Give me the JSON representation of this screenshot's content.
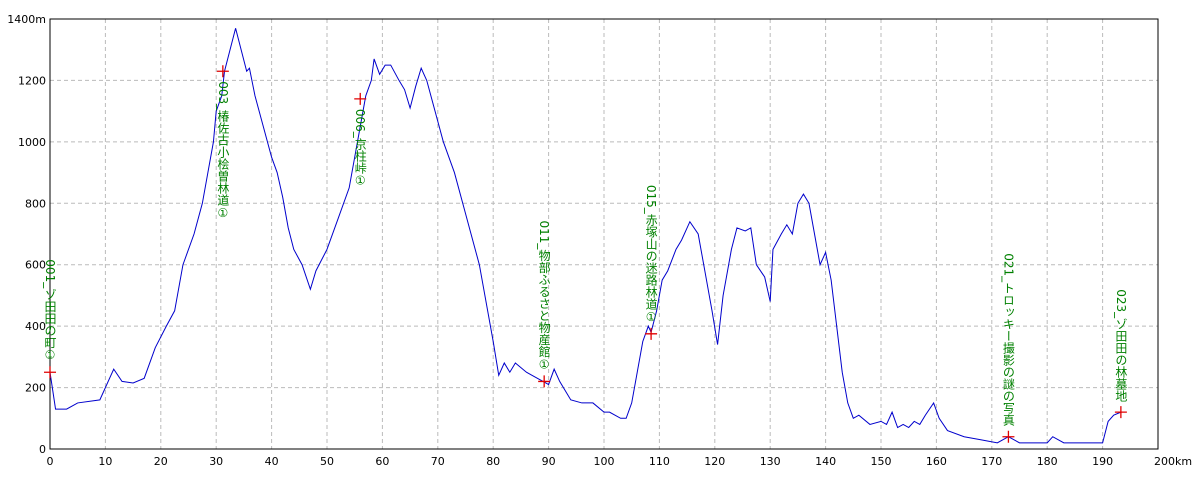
{
  "chart_data": {
    "type": "line",
    "color": "#0000cc",
    "marker_color": "#e00000",
    "label_color": "#008000",
    "grid": true,
    "xlim": [
      0,
      200
    ],
    "ylim": [
      0,
      1400
    ],
    "xticks": [
      0,
      10,
      20,
      30,
      40,
      50,
      60,
      70,
      80,
      90,
      100,
      110,
      120,
      130,
      140,
      150,
      160,
      170,
      180,
      190,
      {
        "value": 200,
        "label": "200km"
      }
    ],
    "yticks": [
      0,
      200,
      400,
      600,
      800,
      1000,
      1200,
      {
        "value": 1400,
        "label": "1400m"
      }
    ],
    "x": [
      0,
      1,
      2,
      3,
      5,
      9,
      11.5,
      13,
      15,
      17,
      19,
      21,
      22.5,
      24,
      26,
      27.5,
      28.5,
      29.5,
      30,
      31,
      31.5,
      32.5,
      33.5,
      34.5,
      35.5,
      36,
      37,
      38.5,
      40,
      41,
      42,
      43,
      44,
      45.5,
      47,
      48,
      50,
      52,
      54,
      55,
      56,
      57,
      58,
      58.5,
      59.5,
      60.5,
      61.5,
      63,
      64,
      65,
      66,
      67,
      68,
      69.5,
      71,
      73,
      74.5,
      76,
      77.5,
      79,
      80,
      81,
      82,
      83,
      84,
      86,
      87,
      89,
      90,
      91,
      92,
      94,
      96,
      98,
      100,
      101,
      103,
      104,
      105,
      106,
      107,
      108,
      108.5,
      109.5,
      110.5,
      111.5,
      113,
      114,
      115.5,
      117,
      118,
      119.5,
      120.5,
      121.5,
      123,
      124,
      125.5,
      126.5,
      127.5,
      129,
      130,
      130.5,
      132,
      133,
      134,
      135,
      136,
      137,
      138,
      139,
      140,
      141,
      142,
      143,
      144,
      145,
      146,
      148,
      150,
      151,
      152,
      153,
      154,
      155,
      156,
      157,
      158,
      159.5,
      160.5,
      162,
      165,
      168,
      171,
      173,
      175,
      178,
      180,
      181,
      183,
      187,
      190,
      191,
      192,
      193.3
    ],
    "values": [
      250,
      130,
      130,
      130,
      150,
      160,
      260,
      220,
      215,
      230,
      330,
      400,
      450,
      600,
      700,
      800,
      900,
      1000,
      1100,
      1150,
      1230,
      1300,
      1370,
      1300,
      1230,
      1240,
      1150,
      1050,
      950,
      900,
      820,
      720,
      650,
      600,
      520,
      580,
      650,
      750,
      850,
      950,
      1050,
      1150,
      1200,
      1270,
      1220,
      1250,
      1250,
      1200,
      1170,
      1110,
      1180,
      1240,
      1200,
      1100,
      1000,
      900,
      800,
      700,
      600,
      450,
      350,
      240,
      280,
      250,
      280,
      250,
      240,
      220,
      210,
      260,
      220,
      160,
      150,
      150,
      120,
      120,
      100,
      100,
      150,
      250,
      350,
      400,
      380,
      450,
      550,
      580,
      650,
      680,
      740,
      700,
      600,
      450,
      340,
      500,
      650,
      720,
      710,
      720,
      600,
      560,
      480,
      650,
      700,
      730,
      700,
      800,
      830,
      800,
      700,
      600,
      640,
      550,
      400,
      250,
      150,
      100,
      110,
      80,
      90,
      80,
      120,
      70,
      80,
      70,
      90,
      80,
      110,
      150,
      100,
      60,
      40,
      30,
      20,
      40,
      20,
      20,
      20,
      40,
      20,
      20,
      20,
      90,
      110,
      120
    ],
    "annotations": [
      {
        "text": "001_ゾ田田の町①",
        "x": 0,
        "y": 250
      },
      {
        "text": "003_椿佐古小桧曽林道①",
        "x": 31.2,
        "y": 1230
      },
      {
        "text": "006_京柱峠①",
        "x": 56,
        "y": 1140
      },
      {
        "text": "011_物部ふるさと物産館①",
        "x": 89.2,
        "y": 220
      },
      {
        "text": "015_赤塚山の迷路林道①",
        "x": 108.5,
        "y": 375
      },
      {
        "text": "021_トロッキー撮影の謎の写真",
        "x": 173,
        "y": 40
      },
      {
        "text": "023_ゾ田田の林墓地",
        "x": 193.3,
        "y": 120
      }
    ]
  }
}
